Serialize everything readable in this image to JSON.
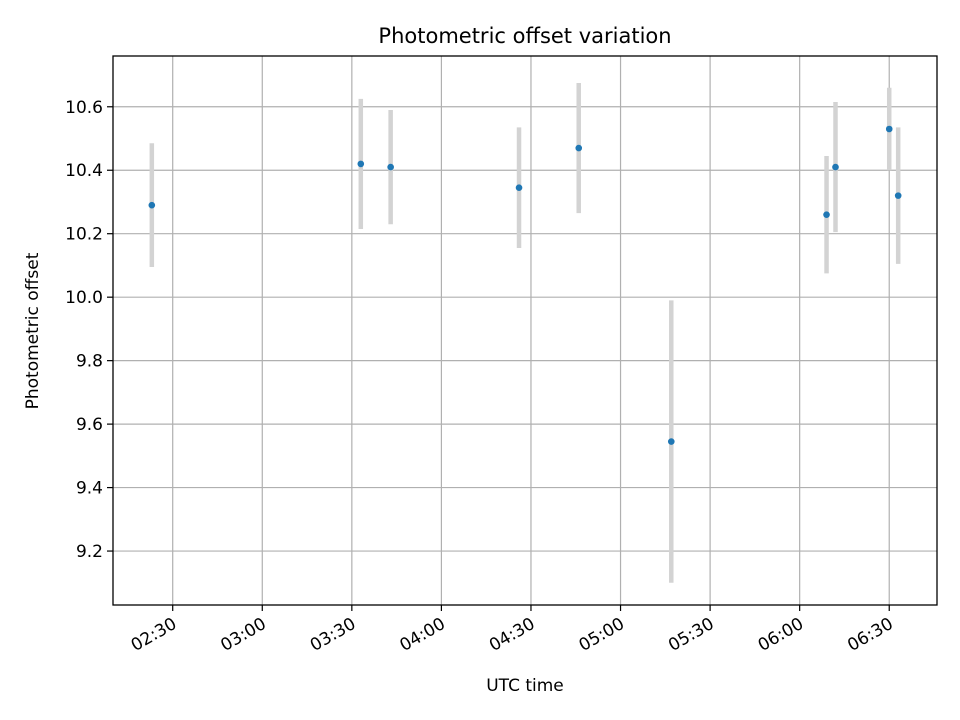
{
  "chart_data": {
    "type": "scatter",
    "title": "Photometric offset variation",
    "xlabel": "UTC time",
    "ylabel": "Photometric offset",
    "x_type": "time",
    "xlim": [
      "02:10",
      "06:46"
    ],
    "ylim": [
      9.03,
      10.76
    ],
    "x_ticks": [
      "02:30",
      "03:00",
      "03:30",
      "04:00",
      "04:30",
      "05:00",
      "05:30",
      "06:00",
      "06:30"
    ],
    "y_ticks": [
      9.2,
      9.4,
      9.6,
      9.8,
      10.0,
      10.2,
      10.4,
      10.6
    ],
    "y_tick_labels": [
      "9.2",
      "9.4",
      "9.6",
      "9.8",
      "10.0",
      "10.2",
      "10.4",
      "10.6"
    ],
    "grid": true,
    "point_color": "#1f77b4",
    "errorbar_color": "#d3d3d3",
    "series": [
      {
        "points": [
          {
            "x": "02:23",
            "y": 10.29,
            "yerr": 0.195
          },
          {
            "x": "03:33",
            "y": 10.42,
            "yerr": 0.205
          },
          {
            "x": "03:43",
            "y": 10.41,
            "yerr": 0.18
          },
          {
            "x": "04:26",
            "y": 10.345,
            "yerr": 0.19
          },
          {
            "x": "04:46",
            "y": 10.47,
            "yerr": 0.205
          },
          {
            "x": "05:17",
            "y": 9.545,
            "yerr": 0.445
          },
          {
            "x": "06:09",
            "y": 10.26,
            "yerr": 0.185
          },
          {
            "x": "06:12",
            "y": 10.41,
            "yerr": 0.205
          },
          {
            "x": "06:30",
            "y": 10.53,
            "yerr": 0.13
          },
          {
            "x": "06:33",
            "y": 10.32,
            "yerr": 0.215
          }
        ]
      }
    ]
  }
}
